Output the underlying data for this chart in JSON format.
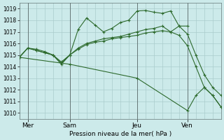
{
  "background_color": "#cceaea",
  "grid_color": "#aacccc",
  "line_color": "#2d6a2d",
  "xlabel": "Pression niveau de la mer( hPa )",
  "xlim": [
    0,
    48
  ],
  "ylim": [
    1009.5,
    1019.5
  ],
  "yticks": [
    1010,
    1011,
    1012,
    1013,
    1014,
    1015,
    1016,
    1017,
    1018,
    1019
  ],
  "xtick_labels": [
    "Mer",
    "Sam",
    "Jeu",
    "Ven"
  ],
  "xtick_positions": [
    2,
    12,
    28,
    40
  ],
  "vline_positions": [
    2,
    12,
    28,
    40
  ],
  "line1_x": [
    0,
    2,
    4,
    6,
    8,
    10,
    12,
    14,
    16,
    18,
    20,
    22,
    24,
    26,
    28,
    30,
    32,
    34,
    36,
    38,
    40,
    42,
    44,
    46,
    48
  ],
  "line1_y": [
    1014.8,
    1015.6,
    1015.5,
    1015.3,
    1015.0,
    1014.4,
    1015.0,
    1017.2,
    1018.2,
    1017.6,
    1017.0,
    1017.3,
    1017.8,
    1018.0,
    1018.8,
    1018.85,
    1018.7,
    1018.6,
    1018.8,
    1017.5,
    1016.8,
    1015.0,
    1013.3,
    1012.2,
    1011.5
  ],
  "line2_x": [
    0,
    2,
    4,
    6,
    8,
    10,
    12,
    14,
    16,
    18,
    20,
    22,
    24,
    26,
    28,
    30,
    32,
    34,
    36,
    38,
    40,
    42,
    44,
    46,
    48
  ],
  "line2_y": [
    1014.8,
    1015.6,
    1015.4,
    1015.2,
    1015.0,
    1014.3,
    1015.0,
    1015.5,
    1015.9,
    1016.1,
    1016.2,
    1016.4,
    1016.5,
    1016.6,
    1016.7,
    1016.9,
    1017.0,
    1017.1,
    1017.0,
    1016.7,
    1015.8,
    1014.0,
    1012.2,
    1011.5,
    1010.5
  ],
  "line3_x": [
    0,
    2,
    4,
    6,
    8,
    10,
    12,
    14,
    16,
    18,
    20,
    22,
    24,
    26,
    28,
    30,
    32,
    34,
    36,
    38,
    40
  ],
  "line3_y": [
    1014.8,
    1015.6,
    1015.4,
    1015.2,
    1015.0,
    1014.2,
    1015.0,
    1015.6,
    1016.0,
    1016.2,
    1016.4,
    1016.5,
    1016.6,
    1016.8,
    1017.0,
    1017.2,
    1017.3,
    1017.5,
    1017.0,
    1017.5,
    1017.5
  ],
  "line4_x": [
    0,
    12,
    28,
    40,
    42,
    44,
    46,
    48
  ],
  "line4_y": [
    1014.8,
    1014.2,
    1013.0,
    1010.2,
    1011.5,
    1012.2,
    1011.5,
    1010.5
  ]
}
